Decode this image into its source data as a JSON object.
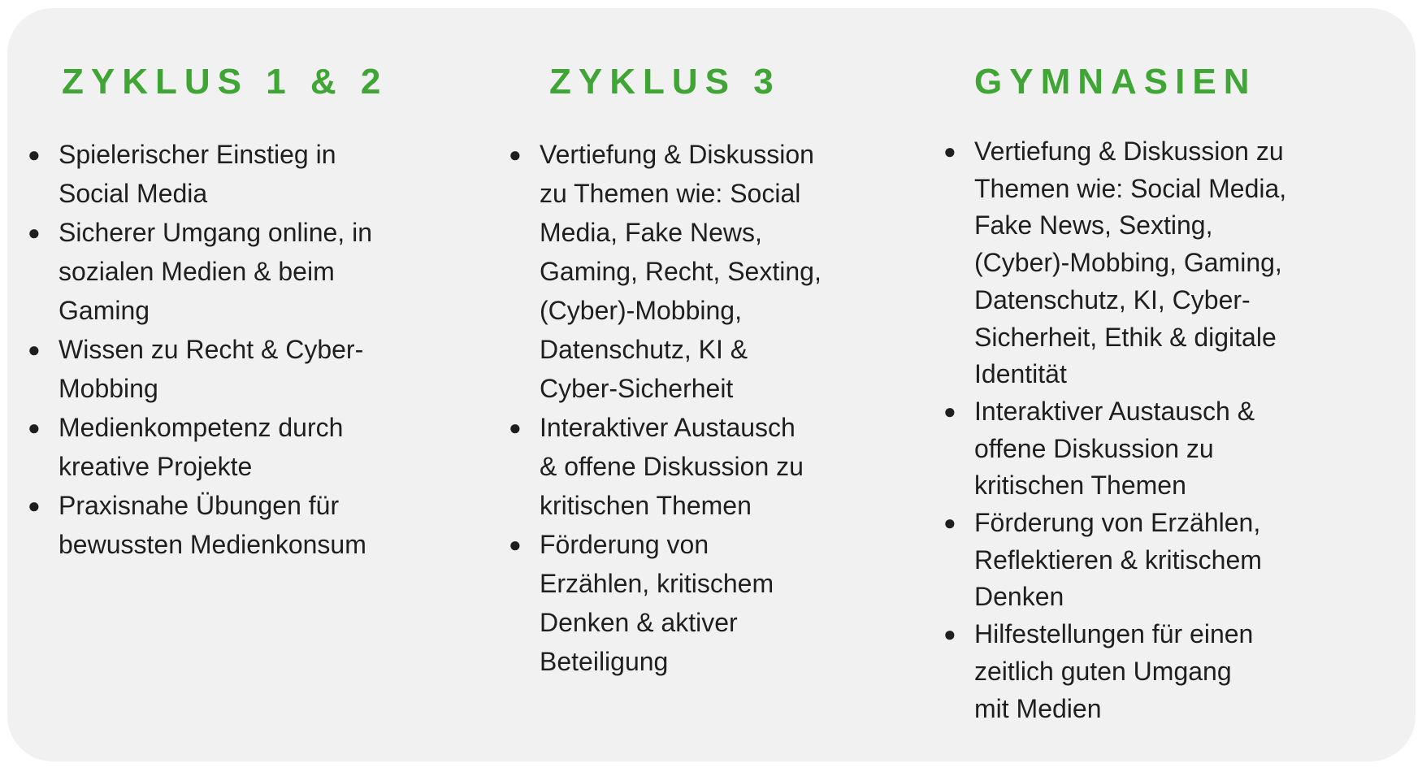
{
  "colors": {
    "accent": "#3fa535",
    "background": "#f1f1f1",
    "text": "#1f1f1f"
  },
  "columns": [
    {
      "heading": "ZYKLUS 1 & 2",
      "items": [
        [
          "Spielerischer Einstieg in",
          "Social Media"
        ],
        [
          "Sicherer Umgang online, in",
          "sozialen Medien & beim",
          "Gaming"
        ],
        [
          "Wissen zu Recht & Cyber-",
          "Mobbing"
        ],
        [
          "Medienkompetenz durch",
          "kreative Projekte"
        ],
        [
          "Praxisnahe Übungen für",
          "bewussten Medienkonsum"
        ]
      ]
    },
    {
      "heading": "ZYKLUS 3",
      "items": [
        [
          "Vertiefung & Diskussion",
          "zu Themen wie: Social",
          "Media, Fake News,",
          "Gaming, Recht, Sexting,",
          "(Cyber)-Mobbing,",
          "Datenschutz, KI &",
          "Cyber-Sicherheit"
        ],
        [
          "Interaktiver Austausch",
          "& offene Diskussion zu",
          "kritischen Themen"
        ],
        [
          "Förderung von",
          "Erzählen, kritischem",
          "Denken & aktiver",
          "Beteiligung"
        ]
      ]
    },
    {
      "heading": "GYMNASIEN",
      "items": [
        [
          "Vertiefung & Diskussion zu",
          "Themen wie: Social Media,",
          "Fake News, Sexting,",
          "(Cyber)-Mobbing, Gaming,",
          "Datenschutz, KI, Cyber-",
          "Sicherheit, Ethik & digitale",
          "Identität"
        ],
        [
          "Interaktiver Austausch &",
          "offene Diskussion zu",
          "kritischen Themen"
        ],
        [
          "Förderung von Erzählen,",
          "Reflektieren & kritischem",
          "Denken"
        ],
        [
          "Hilfestellungen für einen",
          "zeitlich guten Umgang",
          "mit Medien"
        ]
      ]
    }
  ]
}
